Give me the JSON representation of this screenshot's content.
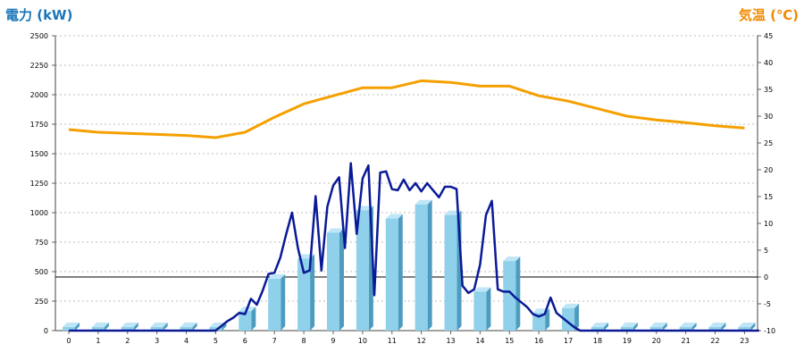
{
  "chart_data": {
    "type": "bar",
    "ylabel_left": "電力 (kW)",
    "ylabel_right": "気温 (℃)",
    "colors": {
      "left_title": "#1a76b8",
      "right_title": "#f08a00",
      "bar_front": "#8fd0ea",
      "bar_side": "#4d9cc0",
      "bar_top": "#bfe6f6",
      "power_line": "#0a1a96",
      "temp_line": "#f5a000",
      "grid": "#bdbdbd",
      "zero_line": "#000000"
    },
    "y_left": {
      "min": 0,
      "max": 2500,
      "ticks": [
        "0",
        "250",
        "500",
        "750",
        "1000",
        "1250",
        "1500",
        "1750",
        "2000",
        "2250",
        "2500"
      ]
    },
    "y_right": {
      "min": -10,
      "max": 45,
      "ticks": [
        "-10",
        "-5",
        "0",
        "5",
        "10",
        "15",
        "20",
        "25",
        "30",
        "35",
        "40",
        "45"
      ]
    },
    "categories": [
      "0",
      "1",
      "2",
      "3",
      "4",
      "5",
      "6",
      "7",
      "8",
      "9",
      "10",
      "11",
      "12",
      "13",
      "14",
      "15",
      "16",
      "17",
      "18",
      "19",
      "20",
      "21",
      "22",
      "23"
    ],
    "series": [
      {
        "kind": "bar",
        "axis": "left",
        "values": [
          30,
          30,
          30,
          30,
          30,
          30,
          165,
          440,
          610,
          830,
          1020,
          950,
          1070,
          980,
          330,
          590,
          150,
          190,
          30,
          30,
          30,
          30,
          30,
          30
        ]
      },
      {
        "kind": "line",
        "axis": "left",
        "x": [
          0,
          0.5,
          1,
          1.5,
          2,
          2.5,
          3,
          3.5,
          4,
          4.5,
          5,
          5.2,
          5.4,
          5.6,
          5.8,
          6,
          6.2,
          6.4,
          6.6,
          6.8,
          7,
          7.2,
          7.4,
          7.6,
          7.8,
          8,
          8.2,
          8.4,
          8.6,
          8.8,
          9,
          9.2,
          9.4,
          9.6,
          9.8,
          10,
          10.2,
          10.4,
          10.6,
          10.8,
          11,
          11.2,
          11.4,
          11.6,
          11.8,
          12,
          12.2,
          12.4,
          12.6,
          12.8,
          13,
          13.2,
          13.4,
          13.6,
          13.8,
          14,
          14.2,
          14.4,
          14.6,
          14.8,
          15,
          15.2,
          15.4,
          15.6,
          15.8,
          16,
          16.2,
          16.4,
          16.6,
          16.8,
          17,
          17.2,
          17.4,
          17.6,
          17.8,
          18,
          18.5,
          19,
          19.5,
          20,
          20.5,
          21,
          21.5,
          22,
          22.5,
          23,
          23.5
        ],
        "y": [
          0,
          0,
          0,
          0,
          0,
          0,
          0,
          0,
          0,
          0,
          0,
          40,
          80,
          110,
          150,
          140,
          270,
          220,
          340,
          480,
          490,
          620,
          820,
          1000,
          700,
          490,
          510,
          1140,
          510,
          1050,
          1230,
          1300,
          700,
          1420,
          820,
          1290,
          1400,
          300,
          1340,
          1350,
          1200,
          1190,
          1280,
          1190,
          1250,
          1180,
          1250,
          1190,
          1130,
          1220,
          1220,
          1200,
          380,
          320,
          350,
          560,
          980,
          1100,
          350,
          330,
          330,
          280,
          240,
          200,
          140,
          120,
          140,
          280,
          150,
          110,
          70,
          30,
          0,
          0,
          0,
          0,
          0,
          0,
          0,
          0,
          0,
          0,
          0,
          0,
          0,
          0,
          0
        ]
      },
      {
        "kind": "line",
        "axis": "right",
        "x": [
          0,
          1,
          2,
          3,
          4,
          5,
          6,
          7,
          8,
          9,
          10,
          11,
          12,
          13,
          14,
          15,
          16,
          17,
          18,
          19,
          20,
          21,
          22,
          23
        ],
        "values": [
          27.5,
          27,
          26.8,
          26.6,
          26.4,
          26,
          27,
          29.8,
          32.3,
          33.8,
          35.3,
          35.3,
          36.6,
          36.3,
          35.6,
          35.6,
          33.8,
          32.8,
          31.4,
          30,
          29.3,
          28.8,
          28.2,
          27.8
        ]
      }
    ]
  }
}
